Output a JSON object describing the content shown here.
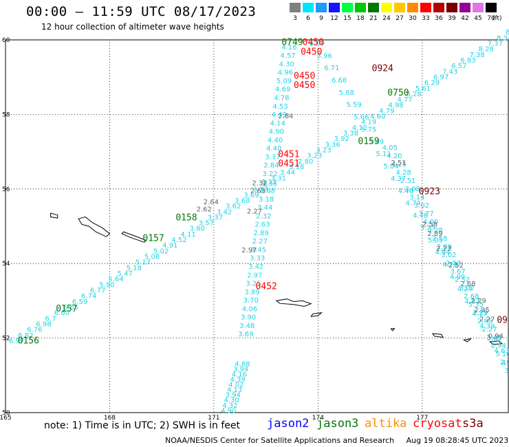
{
  "title": "00:00 – 11:59 UTC 08/17/2023",
  "subtitle": "12 hour collection of altimeter wave heights",
  "scale": {
    "unit": "(ft)",
    "bins": [
      {
        "label": "3",
        "color": "#7f7f7f"
      },
      {
        "label": "6",
        "color": "#00e5ff"
      },
      {
        "label": "9",
        "color": "#1e9bff"
      },
      {
        "label": "12",
        "color": "#1414ff"
      },
      {
        "label": "15",
        "color": "#00ff40"
      },
      {
        "label": "18",
        "color": "#00c800"
      },
      {
        "label": "21",
        "color": "#007800"
      },
      {
        "label": "24",
        "color": "#ffff00"
      },
      {
        "label": "27",
        "color": "#ffc800"
      },
      {
        "label": "30",
        "color": "#ff8c00"
      },
      {
        "label": "33",
        "color": "#ff0000"
      },
      {
        "label": "36",
        "color": "#b40000"
      },
      {
        "label": "39",
        "color": "#780000"
      },
      {
        "label": "42",
        "color": "#960096"
      },
      {
        "label": "45",
        "color": "#e178e1"
      },
      {
        "label": "70",
        "color": "#000000"
      }
    ]
  },
  "map": {
    "lon_labels": [
      "165",
      "168",
      "171",
      "174",
      "177"
    ],
    "lat_labels": [
      "60",
      "58",
      "56",
      "54",
      "52",
      "50"
    ],
    "lon_values": [
      165,
      168,
      171,
      174,
      177
    ],
    "lat_values": [
      60,
      58,
      56,
      54,
      52,
      50
    ],
    "lon_range": [
      165,
      179.5
    ],
    "lat_range": [
      50,
      60
    ]
  },
  "colors": {
    "cyan": "#1ed2e6",
    "gray": "#646464",
    "green": "#007800",
    "red": "#ff0000",
    "darkred": "#780000",
    "blue": "#0000ff",
    "orange": "#ff8c00",
    "coast": "#000000",
    "grid": "#000000"
  },
  "tracks": [
    {
      "name": "southwest-northeast pass",
      "color_key": "cyan",
      "start": [
        165.1,
        51.92
      ],
      "end": [
        179.4,
        60.2
      ],
      "values": [
        "6.97",
        "6.82",
        "6.76",
        "6.98",
        "6.7",
        "6.60",
        "6.65",
        "6.59",
        "6.74",
        "6.77",
        "5.90",
        "5.64",
        "5.47",
        "5.18",
        "5.17",
        "5.08",
        "5.02",
        "4.91",
        "4.52",
        "4.11",
        "3.80",
        "3.57",
        "3.37",
        "3.42",
        "3.62",
        "3.68",
        "3.69",
        "3.27",
        "3.33",
        "3.31",
        "3.44",
        "3.18",
        "2.80",
        "3.23",
        "3.23",
        "3.36",
        "3.92",
        "3.38",
        "4.12",
        "4.19",
        "4.60",
        "4.79",
        "4.98",
        "4.77",
        "5.28",
        "5.61",
        "6.29",
        "6.97",
        "7.43",
        "6.57",
        "6.83",
        "7.38",
        "8.28",
        "7.37",
        "8.34",
        "8.7"
      ]
    },
    {
      "name": "northwest-southeast pass",
      "color_key": "cyan",
      "start": [
        173.75,
        59.9
      ],
      "end": [
        179.5,
        51.0
      ],
      "values": [
        "6.09",
        "5.96",
        "6.71",
        "6.68",
        "5.68",
        "5.59",
        "5.66",
        "5.75",
        "5.49",
        "5.11",
        "5.04",
        "4.37",
        "4.46",
        "4.74",
        "4.78",
        "5.25",
        "5.05",
        "4.94",
        "4.79",
        "4.99",
        "4.27",
        "4.87",
        "4.17",
        "4.39",
        "3.81",
        "4.63",
        "4.35",
        "3.50"
      ]
    },
    {
      "name": "north-south pass 1",
      "color_key": "cyan",
      "start": [
        172.95,
        59.8
      ],
      "end": [
        171.7,
        52.1
      ],
      "values": [
        "4.16",
        "4.57",
        "4.30",
        "4.96",
        "5.09",
        "4.69",
        "4.78",
        "4.53",
        "4.49",
        "4.14",
        "4.90",
        "4.40",
        "4.40",
        "3.37",
        "2.84",
        "3.22",
        "3.32",
        "3.68",
        "3.18",
        "3.44",
        "2.32",
        "2.63",
        "2.89",
        "2.27",
        "3.45",
        "3.33",
        "3.42",
        "2.97",
        "3.25",
        "3.89",
        "3.70",
        "4.06",
        "3.90",
        "3.48",
        "3.69"
      ]
    },
    {
      "name": "north-south pass 2",
      "color_key": "cyan",
      "start": [
        171.6,
        51.3
      ],
      "end": [
        171.2,
        50.05
      ],
      "values": [
        "4.88",
        "3.94",
        "4.16",
        "4.39",
        "4.02",
        "4.13",
        "3.94",
        "4.30",
        "4.32",
        "4.90"
      ]
    },
    {
      "name": "southeast pass",
      "color_key": "cyan",
      "start": [
        175.85,
        57.1
      ],
      "end": [
        179.5,
        50.9
      ],
      "values": [
        "4.05",
        "4.20",
        "4.25",
        "4.28",
        "2.51",
        "3.08",
        "3.14",
        "3.02",
        "3.77",
        "4.00",
        "3.28",
        "2.58",
        "2.89",
        "3.02",
        "2.23",
        "3.67",
        "2.52",
        "3.02",
        "2.68",
        "5.35",
        "2.29",
        "2.95",
        "2.27",
        "3.46",
        "0.94",
        "5.16",
        "2.0",
        "3.9",
        "5"
      ]
    }
  ],
  "gray_labels": [
    {
      "text": "2.84",
      "lon": 172.85,
      "lat": 57.95
    },
    {
      "text": "2.32",
      "lon": 172.1,
      "lat": 56.15
    },
    {
      "text": "2.63",
      "lon": 172.05,
      "lat": 55.95
    },
    {
      "text": "2.64",
      "lon": 170.7,
      "lat": 55.65
    },
    {
      "text": "2.62",
      "lon": 170.5,
      "lat": 55.45
    },
    {
      "text": "2.27",
      "lon": 171.95,
      "lat": 55.4
    },
    {
      "text": "2.97",
      "lon": 171.8,
      "lat": 54.35
    },
    {
      "text": "2.51",
      "lon": 176.1,
      "lat": 56.7
    },
    {
      "text": "2.58",
      "lon": 177.0,
      "lat": 55.05
    },
    {
      "text": "2.89",
      "lon": 177.15,
      "lat": 54.8
    },
    {
      "text": "2.23",
      "lon": 177.4,
      "lat": 54.4
    },
    {
      "text": "2.52",
      "lon": 177.75,
      "lat": 53.95
    },
    {
      "text": "2.68",
      "lon": 178.1,
      "lat": 53.45
    },
    {
      "text": "2.29",
      "lon": 178.4,
      "lat": 53.0
    },
    {
      "text": "2.95",
      "lon": 178.5,
      "lat": 52.75
    },
    {
      "text": "2.27",
      "lon": 178.65,
      "lat": 52.5
    },
    {
      "text": "0.94",
      "lon": 178.9,
      "lat": 52.05
    }
  ],
  "time_labels": [
    {
      "text": "0749",
      "lon": 172.95,
      "lat": 59.95,
      "color_key": "green"
    },
    {
      "text": "0450",
      "lon": 173.55,
      "lat": 59.95,
      "color_key": "red"
    },
    {
      "text": "0450",
      "lon": 173.5,
      "lat": 59.7,
      "color_key": "red"
    },
    {
      "text": "0924",
      "lon": 175.55,
      "lat": 59.25,
      "color_key": "darkred"
    },
    {
      "text": "0450",
      "lon": 173.3,
      "lat": 59.05,
      "color_key": "red"
    },
    {
      "text": "0450",
      "lon": 173.3,
      "lat": 58.8,
      "color_key": "red"
    },
    {
      "text": "0750",
      "lon": 176.0,
      "lat": 58.6,
      "color_key": "green"
    },
    {
      "text": "0159",
      "lon": 175.15,
      "lat": 57.3,
      "color_key": "green"
    },
    {
      "text": "0451",
      "lon": 172.85,
      "lat": 56.95,
      "color_key": "red"
    },
    {
      "text": "0451",
      "lon": 172.85,
      "lat": 56.7,
      "color_key": "red"
    },
    {
      "text": "0923",
      "lon": 176.9,
      "lat": 55.95,
      "color_key": "darkred"
    },
    {
      "text": "0158",
      "lon": 169.9,
      "lat": 55.25,
      "color_key": "green"
    },
    {
      "text": "0157",
      "lon": 168.95,
      "lat": 54.7,
      "color_key": "green"
    },
    {
      "text": "0452",
      "lon": 172.2,
      "lat": 53.4,
      "color_key": "red"
    },
    {
      "text": "0157",
      "lon": 166.45,
      "lat": 52.8,
      "color_key": "green"
    },
    {
      "text": "0156",
      "lon": 165.35,
      "lat": 51.95,
      "color_key": "green"
    },
    {
      "text": "09",
      "lon": 179.15,
      "lat": 52.5,
      "color_key": "darkred"
    }
  ],
  "footer": {
    "note": "note:  1) Time is in UTC;  2) SWH is in feet",
    "satellites": [
      {
        "name": "jason2",
        "color_key": "blue"
      },
      {
        "name": "jason3",
        "color_key": "green"
      },
      {
        "name": "altika",
        "color_key": "orange"
      },
      {
        "name": "cryosat",
        "color_key": "red"
      },
      {
        "name": "s3a",
        "color_key": "darkred"
      }
    ],
    "credit": "NOAA/NESDIS Center for Satellite Applications and Research     Aug 19 08:28:45 UTC 2023"
  }
}
